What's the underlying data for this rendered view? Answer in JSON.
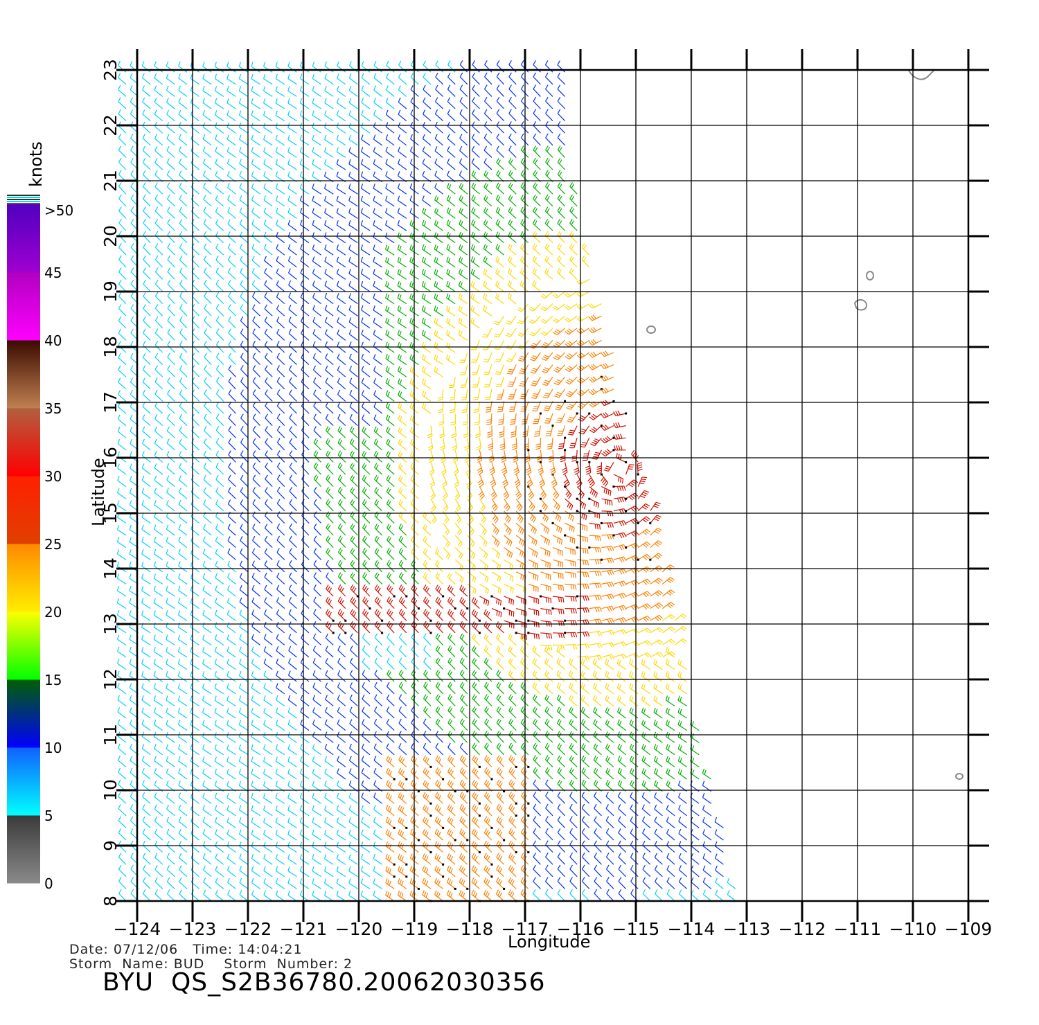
{
  "map": {
    "lon_ticks": [
      -124,
      -123,
      -122,
      -121,
      -120,
      -119,
      -118,
      -117,
      -116,
      -115,
      -114,
      -113,
      -112,
      -111,
      -110,
      -109
    ],
    "lat_ticks": [
      8,
      9,
      10,
      11,
      12,
      13,
      14,
      15,
      16,
      17,
      18,
      19,
      20,
      21,
      22,
      23
    ],
    "lon_range": [
      -124,
      -109
    ],
    "lat_range": [
      8,
      23
    ],
    "xlabel": "Longitude",
    "ylabel": "Latitude",
    "grid": true,
    "storm_center": {
      "lon": -115.3,
      "lat": 15.8
    }
  },
  "colorbar": {
    "unit": "knots",
    "labels": [
      "0",
      "5",
      "10",
      "15",
      "20",
      "25",
      "30",
      "35",
      "40",
      "45",
      ">50"
    ],
    "stops": [
      {
        "from": 0,
        "to": 5,
        "top": "#3a3a3a",
        "bottom": "#8a8a8a"
      },
      {
        "from": 5,
        "to": 10,
        "top": "#1060ff",
        "bottom": "#00ffff"
      },
      {
        "from": 10,
        "to": 15,
        "top": "#006000",
        "bottom": "#0000ff"
      },
      {
        "from": 15,
        "to": 20,
        "top": "#ffff00",
        "bottom": "#00ff00"
      },
      {
        "from": 20,
        "to": 25,
        "top": "#ff8800",
        "bottom": "#ffee00"
      },
      {
        "from": 25,
        "to": 30,
        "top": "#ff2000",
        "bottom": "#e04000"
      },
      {
        "from": 30,
        "to": 35,
        "top": "#b06040",
        "bottom": "#ff0000"
      },
      {
        "from": 35,
        "to": 40,
        "top": "#3a0a00",
        "bottom": "#c08050"
      },
      {
        "from": 40,
        "to": 45,
        "top": "#b000c0",
        "bottom": "#ff00ff"
      },
      {
        "from": 45,
        "to": 50,
        "top": "#5000c0",
        "bottom": "#a000d0"
      }
    ]
  },
  "wind_colors": {
    "calm": "#00d0ff",
    "light": "#0030ff",
    "moderate": "#00b000",
    "fresh": "#ffd800",
    "strong": "#ff8000",
    "gale": "#d01000",
    "storm": "#a000d0"
  },
  "metadata": {
    "line1": "Date: 07/12/06   Time: 14:04:21",
    "line2": "Storm  Name: BUD    Storm  Number: 2",
    "caption": "BYU  QS_S2B36780.20062030356"
  }
}
